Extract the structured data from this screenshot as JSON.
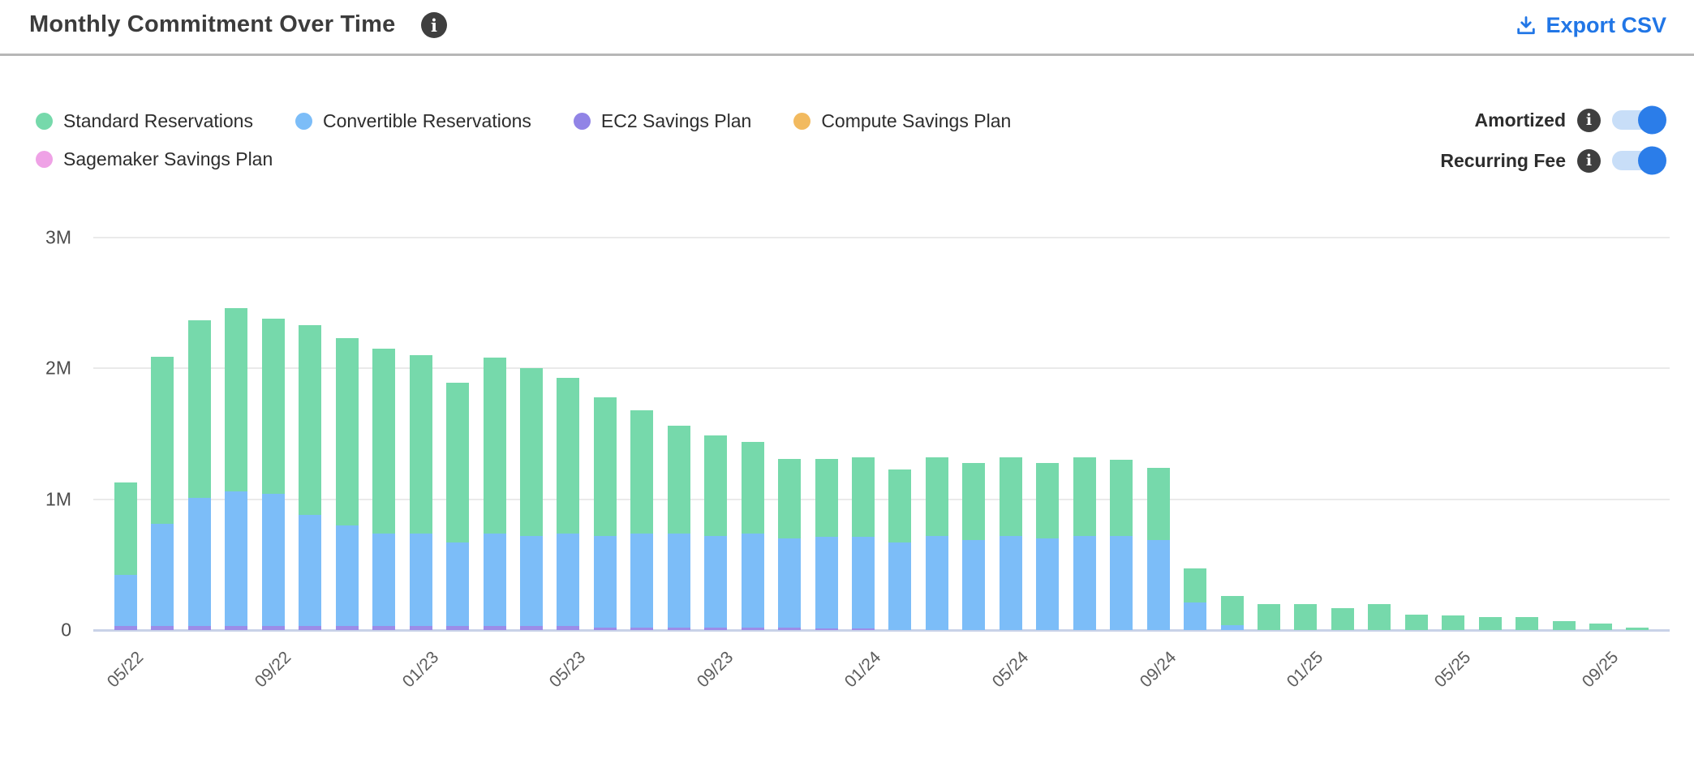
{
  "header": {
    "title": "Monthly Commitment Over Time",
    "export_label": "Export CSV"
  },
  "legend": {
    "items": [
      {
        "label": "Standard Reservations",
        "color": "#76d9ab"
      },
      {
        "label": "Convertible Reservations",
        "color": "#7cbdf8"
      },
      {
        "label": "EC2 Savings Plan",
        "color": "#9184e6"
      },
      {
        "label": "Compute Savings Plan",
        "color": "#f2ba5f"
      },
      {
        "label": "Sagemaker Savings Plan",
        "color": "#efa2e6"
      }
    ]
  },
  "toggles": [
    {
      "label": "Amortized",
      "state": "on"
    },
    {
      "label": "Recurring Fee",
      "state": "on"
    }
  ],
  "colors": {
    "accent_blue": "#2176e6",
    "toggle_track": "#c8def8",
    "toggle_knob": "#2b7de9",
    "gridline": "#eaeaea",
    "zero_axis": "#c9d2e8"
  },
  "chart_data": {
    "type": "bar",
    "stacked": true,
    "title": "Monthly Commitment Over Time",
    "unit": "millions",
    "ylim": [
      0,
      3
    ],
    "grid": true,
    "legend_position": "top-left",
    "x_label_every": 4,
    "y_ticks": [
      {
        "label": "0",
        "value": 0
      },
      {
        "label": "1M",
        "value": 1
      },
      {
        "label": "2M",
        "value": 2
      },
      {
        "label": "3M",
        "value": 3
      }
    ],
    "x": [
      "05/22",
      "06/22",
      "07/22",
      "08/22",
      "09/22",
      "10/22",
      "11/22",
      "12/22",
      "01/23",
      "02/23",
      "03/23",
      "04/23",
      "05/23",
      "06/23",
      "07/23",
      "08/23",
      "09/23",
      "10/23",
      "11/23",
      "12/23",
      "01/24",
      "02/24",
      "03/24",
      "04/24",
      "05/24",
      "06/24",
      "07/24",
      "08/24",
      "09/24",
      "10/24",
      "11/24",
      "12/24",
      "01/25",
      "02/25",
      "03/25",
      "04/25",
      "05/25",
      "06/25",
      "07/25",
      "08/25",
      "09/25",
      "10/25"
    ],
    "series": [
      {
        "name": "EC2 Savings Plan",
        "color": "#9c8ce8",
        "values": [
          0.03,
          0.03,
          0.03,
          0.03,
          0.03,
          0.03,
          0.03,
          0.03,
          0.03,
          0.03,
          0.03,
          0.03,
          0.03,
          0.02,
          0.02,
          0.02,
          0.02,
          0.02,
          0.02,
          0.01,
          0.01,
          0,
          0,
          0,
          0,
          0,
          0,
          0,
          0,
          0,
          0,
          0,
          0,
          0,
          0,
          0,
          0,
          0,
          0,
          0,
          0,
          0
        ]
      },
      {
        "name": "Convertible Reservations",
        "color": "#7cbdf8",
        "values": [
          0.39,
          0.78,
          0.98,
          1.03,
          1.01,
          0.85,
          0.77,
          0.71,
          0.71,
          0.64,
          0.71,
          0.69,
          0.71,
          0.7,
          0.72,
          0.72,
          0.7,
          0.72,
          0.68,
          0.7,
          0.7,
          0.67,
          0.72,
          0.69,
          0.72,
          0.7,
          0.72,
          0.72,
          0.69,
          0.21,
          0.04,
          0,
          0,
          0,
          0,
          0,
          0,
          0,
          0,
          0,
          0,
          0
        ]
      },
      {
        "name": "Standard Reservations",
        "color": "#76d9ab",
        "values": [
          0.71,
          1.28,
          1.36,
          1.4,
          1.34,
          1.45,
          1.43,
          1.41,
          1.36,
          1.22,
          1.34,
          1.28,
          1.19,
          1.06,
          0.94,
          0.82,
          0.77,
          0.7,
          0.61,
          0.6,
          0.61,
          0.56,
          0.6,
          0.59,
          0.6,
          0.58,
          0.6,
          0.58,
          0.55,
          0.26,
          0.22,
          0.2,
          0.2,
          0.17,
          0.2,
          0.12,
          0.11,
          0.1,
          0.1,
          0.07,
          0.05,
          0.02
        ]
      },
      {
        "name": "Compute Savings Plan",
        "color": "#f2ba5f",
        "values": [
          0,
          0,
          0,
          0,
          0,
          0,
          0,
          0,
          0,
          0,
          0,
          0,
          0,
          0,
          0,
          0,
          0,
          0,
          0,
          0,
          0,
          0,
          0,
          0,
          0,
          0,
          0,
          0,
          0,
          0,
          0,
          0,
          0,
          0,
          0,
          0,
          0,
          0,
          0,
          0,
          0,
          0
        ]
      },
      {
        "name": "Sagemaker Savings Plan",
        "color": "#efa2e6",
        "values": [
          0,
          0,
          0,
          0,
          0,
          0,
          0,
          0,
          0,
          0,
          0,
          0,
          0,
          0,
          0,
          0,
          0,
          0,
          0,
          0,
          0,
          0,
          0,
          0,
          0,
          0,
          0,
          0,
          0,
          0,
          0,
          0,
          0,
          0,
          0,
          0,
          0,
          0,
          0,
          0,
          0,
          0
        ]
      }
    ]
  }
}
